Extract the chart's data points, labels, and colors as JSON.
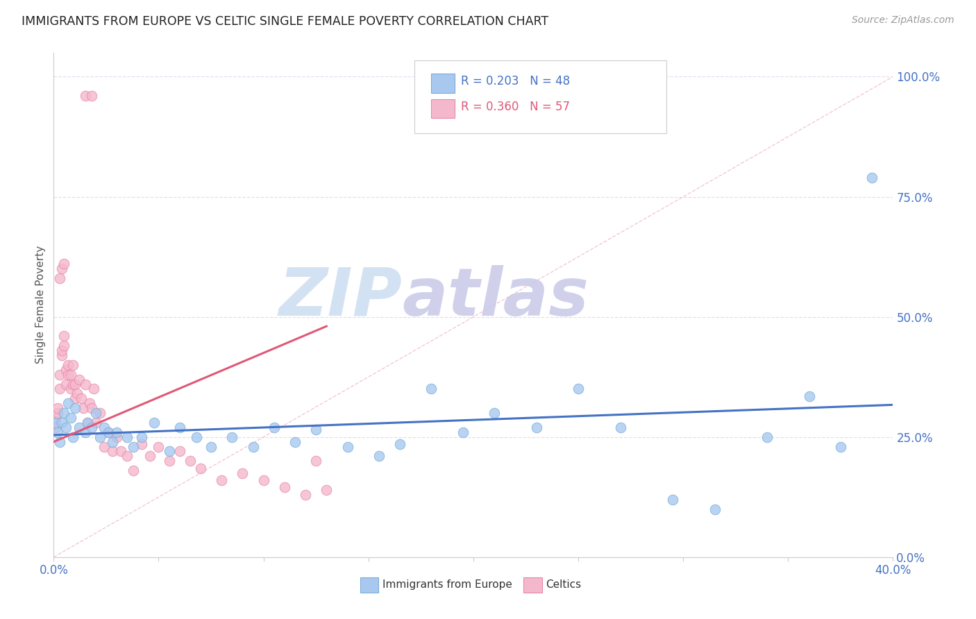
{
  "title": "IMMIGRANTS FROM EUROPE VS CELTIC SINGLE FEMALE POVERTY CORRELATION CHART",
  "source": "Source: ZipAtlas.com",
  "ylabel": "Single Female Poverty",
  "right_yticks": [
    0.0,
    0.25,
    0.5,
    0.75,
    1.0
  ],
  "right_yticklabels": [
    "0.0%",
    "25.0%",
    "50.0%",
    "75.0%",
    "100.0%"
  ],
  "xlim": [
    0.0,
    0.4
  ],
  "ylim": [
    0.0,
    1.05
  ],
  "blue_scatter_color": "#a8c8f0",
  "blue_edge_color": "#7aaed6",
  "pink_scatter_color": "#f4b8cc",
  "pink_edge_color": "#e888a8",
  "trend_blue": "#4472c4",
  "trend_pink": "#e05878",
  "diag_line_color": "#f0b0c0",
  "background": "#ffffff",
  "grid_color": "#e0e0ee",
  "legend_R_blue": "R = 0.203",
  "legend_N_blue": "N = 48",
  "legend_R_pink": "R = 0.360",
  "legend_N_pink": "N = 57",
  "blue_points_x": [
    0.001,
    0.002,
    0.003,
    0.004,
    0.005,
    0.006,
    0.007,
    0.008,
    0.009,
    0.01,
    0.012,
    0.015,
    0.016,
    0.018,
    0.02,
    0.022,
    0.024,
    0.026,
    0.028,
    0.03,
    0.035,
    0.038,
    0.042,
    0.048,
    0.055,
    0.06,
    0.068,
    0.075,
    0.085,
    0.095,
    0.105,
    0.115,
    0.125,
    0.14,
    0.155,
    0.165,
    0.18,
    0.195,
    0.21,
    0.23,
    0.25,
    0.27,
    0.295,
    0.315,
    0.34,
    0.36,
    0.375,
    0.39
  ],
  "blue_points_y": [
    0.28,
    0.26,
    0.24,
    0.28,
    0.3,
    0.27,
    0.32,
    0.29,
    0.25,
    0.31,
    0.27,
    0.26,
    0.28,
    0.27,
    0.3,
    0.25,
    0.27,
    0.26,
    0.24,
    0.26,
    0.25,
    0.23,
    0.25,
    0.28,
    0.22,
    0.27,
    0.25,
    0.23,
    0.25,
    0.23,
    0.27,
    0.24,
    0.265,
    0.23,
    0.21,
    0.235,
    0.35,
    0.26,
    0.3,
    0.27,
    0.35,
    0.27,
    0.12,
    0.1,
    0.25,
    0.335,
    0.23,
    0.79
  ],
  "pink_points_x": [
    0.001,
    0.001,
    0.002,
    0.002,
    0.003,
    0.003,
    0.004,
    0.004,
    0.005,
    0.005,
    0.006,
    0.006,
    0.007,
    0.007,
    0.008,
    0.008,
    0.009,
    0.009,
    0.01,
    0.01,
    0.011,
    0.012,
    0.013,
    0.014,
    0.015,
    0.016,
    0.017,
    0.018,
    0.019,
    0.02,
    0.022,
    0.024,
    0.026,
    0.028,
    0.03,
    0.032,
    0.035,
    0.038,
    0.042,
    0.046,
    0.05,
    0.055,
    0.06,
    0.065,
    0.07,
    0.08,
    0.09,
    0.1,
    0.11,
    0.12,
    0.125,
    0.13,
    0.015,
    0.018,
    0.003,
    0.004,
    0.005
  ],
  "pink_points_y": [
    0.27,
    0.29,
    0.3,
    0.31,
    0.38,
    0.35,
    0.42,
    0.43,
    0.44,
    0.46,
    0.39,
    0.36,
    0.38,
    0.4,
    0.35,
    0.38,
    0.4,
    0.36,
    0.33,
    0.36,
    0.34,
    0.37,
    0.33,
    0.31,
    0.36,
    0.28,
    0.32,
    0.31,
    0.35,
    0.28,
    0.3,
    0.23,
    0.26,
    0.22,
    0.25,
    0.22,
    0.21,
    0.18,
    0.235,
    0.21,
    0.23,
    0.2,
    0.22,
    0.2,
    0.185,
    0.16,
    0.175,
    0.16,
    0.145,
    0.13,
    0.2,
    0.14,
    0.96,
    0.96,
    0.58,
    0.6,
    0.61
  ]
}
